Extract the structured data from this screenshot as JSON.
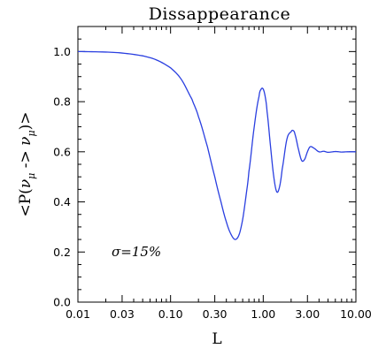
{
  "chart_data": {
    "type": "line",
    "title": "Dissappearance",
    "xlabel": "L",
    "ylabel": "<P(ν_μ -> ν_μ)>",
    "ylabel_parts": {
      "open": "<P(",
      "nu1": "ν",
      "sub1": "μ",
      "arrow": " -> ",
      "nu2": "ν",
      "sub2": "μ",
      "close": ")>"
    },
    "annotation": "σ=15%",
    "xscale": "log",
    "xlim": [
      0.01,
      10.0
    ],
    "ylim": [
      0.0,
      1.1
    ],
    "x_ticks": [
      0.01,
      0.03,
      0.1,
      0.3,
      1.0,
      3.0,
      10.0
    ],
    "x_tick_labels": [
      "0.01",
      "0.03",
      "0.10",
      "0.30",
      "1.00",
      "3.00",
      "10.00"
    ],
    "y_ticks": [
      0.0,
      0.2,
      0.4,
      0.6,
      0.8,
      1.0
    ],
    "y_tick_labels": [
      "0.0",
      "0.2",
      "0.4",
      "0.6",
      "0.8",
      "1.0"
    ],
    "series": [
      {
        "color": "#2a3fe0",
        "x": [
          0.01,
          0.02,
          0.03,
          0.05,
          0.07,
          0.1,
          0.13,
          0.17,
          0.2,
          0.25,
          0.3,
          0.35,
          0.4,
          0.45,
          0.5,
          0.55,
          0.6,
          0.65,
          0.7,
          0.8,
          0.9,
          0.95,
          1.0,
          1.05,
          1.1,
          1.2,
          1.3,
          1.4,
          1.5,
          1.6,
          1.8,
          2.0,
          2.1,
          2.2,
          2.4,
          2.6,
          2.8,
          3.0,
          3.2,
          3.5,
          4.0,
          4.5,
          5.0,
          6.0,
          7.0,
          8.0,
          9.0,
          10.0
        ],
        "y": [
          1.0,
          0.998,
          0.994,
          0.983,
          0.967,
          0.935,
          0.89,
          0.81,
          0.74,
          0.62,
          0.5,
          0.4,
          0.32,
          0.27,
          0.25,
          0.27,
          0.33,
          0.42,
          0.52,
          0.7,
          0.82,
          0.85,
          0.85,
          0.82,
          0.76,
          0.62,
          0.5,
          0.44,
          0.46,
          0.53,
          0.65,
          0.68,
          0.685,
          0.67,
          0.61,
          0.565,
          0.57,
          0.6,
          0.62,
          0.615,
          0.6,
          0.602,
          0.598,
          0.601,
          0.599,
          0.6,
          0.6,
          0.6
        ]
      }
    ]
  }
}
